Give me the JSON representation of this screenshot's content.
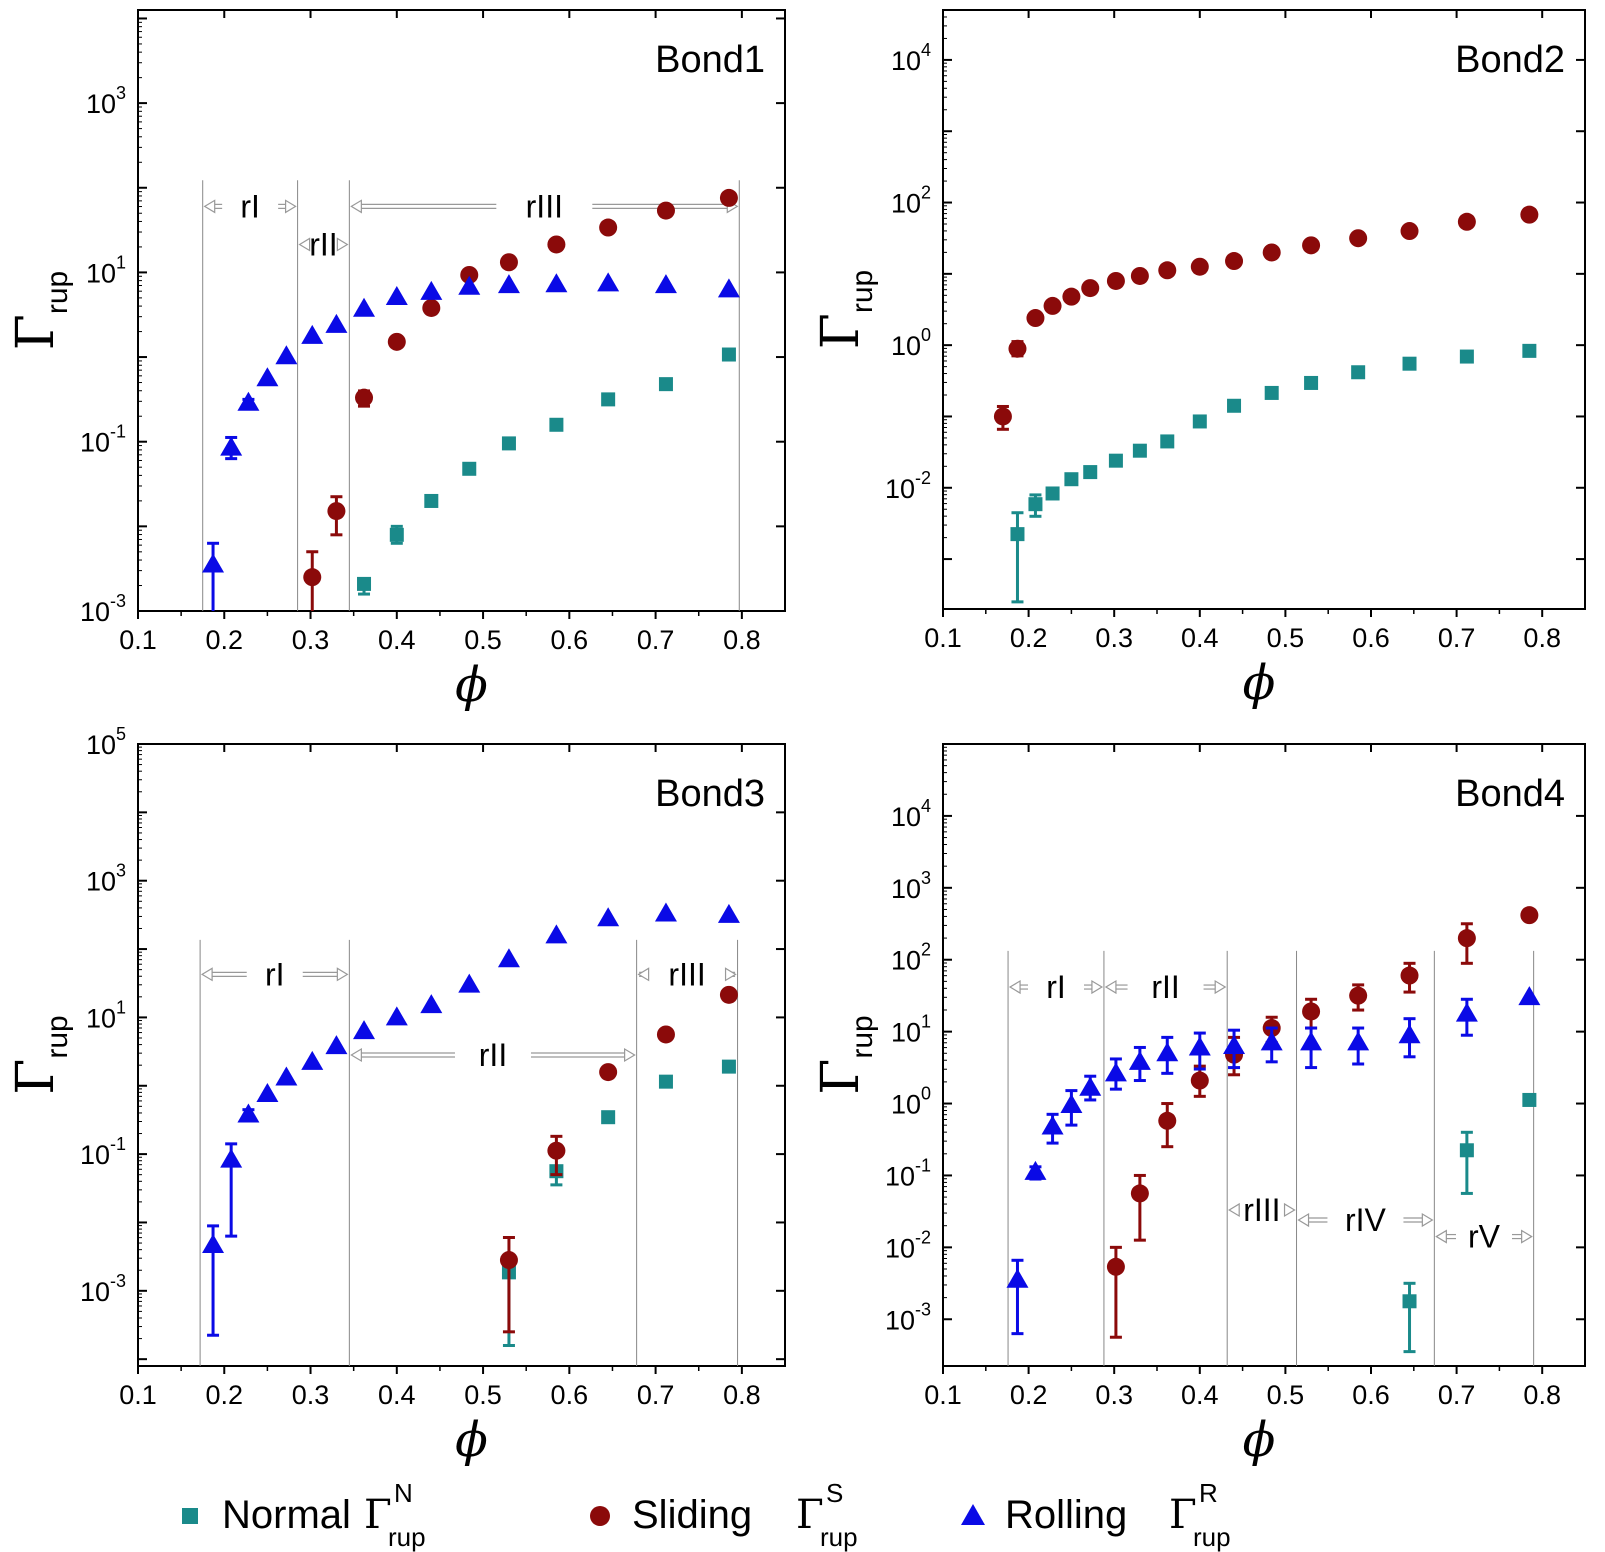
{
  "legend": {
    "normal": {
      "label": "Normal",
      "symbol": "Γ",
      "sup": "N",
      "sub": "rup",
      "color": "#1a8a8a",
      "marker": "square"
    },
    "sliding": {
      "label": "Sliding",
      "symbol": "Γ",
      "sup": "S",
      "sub": "rup",
      "color": "#8b0a0a",
      "marker": "circle"
    },
    "rolling": {
      "label": "Rolling",
      "symbol": "Γ",
      "sup": "R",
      "sub": "rup",
      "color": "#0a0ae6",
      "marker": "triangle"
    }
  },
  "axis_text": {
    "x_label": "ϕ",
    "y_symbol": "Γ",
    "y_sub": "rup"
  },
  "chart_data": [
    {
      "type": "scatter",
      "title": "Bond1",
      "xlabel": "ϕ",
      "ylabel": "Γrup",
      "yscale": "log",
      "xlim": [
        0.1,
        0.85
      ],
      "ylim_exp": [
        -3,
        4.1
      ],
      "xticks": [
        "0.1",
        "0.2",
        "0.3",
        "0.4",
        "0.5",
        "0.6",
        "0.7",
        "0.8"
      ],
      "yticks": [
        {
          "base": "10",
          "exp": "-3",
          "v": -3
        },
        {
          "base": "10",
          "exp": "-1",
          "v": -1
        },
        {
          "base": "10",
          "exp": "1",
          "v": 1
        },
        {
          "base": "10",
          "exp": "3",
          "v": 3
        }
      ],
      "region_lines": [
        0.175,
        0.285,
        0.345,
        0.797
      ],
      "regions": [
        {
          "label": "rI",
          "x1": 0.175,
          "x2": 0.285,
          "y_exp": 1.78,
          "arrow_style": "short"
        },
        {
          "label": "rII",
          "x1": 0.285,
          "x2": 0.345,
          "y_exp": 1.33,
          "arrow_style": "tiny"
        },
        {
          "label": "rIII",
          "x1": 0.345,
          "x2": 0.797,
          "y_exp": 1.78,
          "arrow_style": "long"
        }
      ],
      "series": [
        {
          "name": "Normal",
          "x": [
            0.362,
            0.4,
            0.44,
            0.484,
            0.53,
            0.585,
            0.645,
            0.712,
            0.785
          ],
          "y_exp": [
            -2.68,
            -2.1,
            -1.7,
            -1.32,
            -1.02,
            -0.8,
            -0.5,
            -0.32,
            0.03
          ],
          "err_lo": [
            -2.8,
            -2.2,
            null,
            null,
            null,
            null,
            null,
            null,
            null
          ],
          "err_hi": [
            null,
            -2.0,
            null,
            null,
            null,
            null,
            null,
            null,
            null
          ]
        },
        {
          "name": "Sliding",
          "x": [
            0.302,
            0.33,
            0.362,
            0.4,
            0.44,
            0.484,
            0.53,
            0.585,
            0.645,
            0.712,
            0.785
          ],
          "y_exp": [
            -2.6,
            -1.82,
            -0.48,
            0.18,
            0.58,
            0.97,
            1.12,
            1.33,
            1.53,
            1.73,
            1.88
          ],
          "err_lo": [
            -3.0,
            -2.1,
            -0.58,
            null,
            null,
            null,
            null,
            null,
            null,
            null,
            null
          ],
          "err_hi": [
            -2.3,
            -1.65,
            -0.4,
            null,
            null,
            null,
            null,
            null,
            null,
            null,
            null
          ]
        },
        {
          "name": "Rolling",
          "x": [
            0.187,
            0.208,
            0.228,
            0.25,
            0.272,
            0.302,
            0.33,
            0.362,
            0.4,
            0.44,
            0.484,
            0.53,
            0.585,
            0.645,
            0.712,
            0.785
          ],
          "y_exp": [
            -2.45,
            -1.07,
            -0.54,
            -0.25,
            0.01,
            0.25,
            0.38,
            0.57,
            0.71,
            0.77,
            0.83,
            0.85,
            0.86,
            0.87,
            0.85,
            0.8
          ],
          "err_lo": [
            -3.0,
            -1.2,
            -0.6,
            null,
            null,
            null,
            null,
            null,
            null,
            null,
            null,
            null,
            null,
            null,
            null,
            null
          ],
          "err_hi": [
            -2.2,
            -0.95,
            -0.5,
            null,
            null,
            null,
            null,
            null,
            null,
            null,
            null,
            null,
            null,
            null,
            null,
            null
          ]
        }
      ]
    },
    {
      "type": "scatter",
      "title": "Bond2",
      "xlabel": "ϕ",
      "ylabel": "Γrup",
      "yscale": "log",
      "xlim": [
        0.1,
        0.85
      ],
      "ylim_exp": [
        -3.7,
        4.7
      ],
      "xticks": [
        "0.1",
        "0.2",
        "0.3",
        "0.4",
        "0.5",
        "0.6",
        "0.7",
        "0.8"
      ],
      "yticks": [
        {
          "base": "10",
          "exp": "-2",
          "v": -2
        },
        {
          "base": "10",
          "exp": "0",
          "v": 0
        },
        {
          "base": "10",
          "exp": "2",
          "v": 2
        },
        {
          "base": "10",
          "exp": "4",
          "v": 4
        }
      ],
      "region_lines": [],
      "regions": [],
      "series": [
        {
          "name": "Normal",
          "x": [
            0.187,
            0.208,
            0.228,
            0.25,
            0.272,
            0.302,
            0.33,
            0.362,
            0.4,
            0.44,
            0.484,
            0.53,
            0.585,
            0.645,
            0.712,
            0.785
          ],
          "y_exp": [
            -2.65,
            -2.23,
            -2.08,
            -1.88,
            -1.78,
            -1.62,
            -1.48,
            -1.35,
            -1.07,
            -0.85,
            -0.67,
            -0.53,
            -0.38,
            -0.26,
            -0.16,
            -0.08
          ],
          "err_lo": [
            -3.6,
            -2.4,
            -2.12,
            null,
            null,
            null,
            null,
            null,
            null,
            null,
            null,
            null,
            null,
            null,
            null,
            null
          ],
          "err_hi": [
            -2.35,
            -2.1,
            -2.04,
            null,
            null,
            null,
            null,
            null,
            null,
            null,
            null,
            null,
            null,
            null,
            null,
            null
          ]
        },
        {
          "name": "Sliding",
          "x": [
            0.17,
            0.187,
            0.208,
            0.228,
            0.25,
            0.272,
            0.302,
            0.33,
            0.362,
            0.4,
            0.44,
            0.484,
            0.53,
            0.585,
            0.645,
            0.712,
            0.785
          ],
          "y_exp": [
            -1.0,
            -0.05,
            0.38,
            0.55,
            0.68,
            0.8,
            0.9,
            0.97,
            1.05,
            1.1,
            1.18,
            1.3,
            1.4,
            1.5,
            1.6,
            1.73,
            1.83
          ],
          "err_lo": [
            -1.18,
            -0.15,
            null,
            null,
            null,
            null,
            null,
            null,
            null,
            null,
            null,
            null,
            null,
            null,
            null,
            null,
            null
          ],
          "err_hi": [
            -0.86,
            0.05,
            null,
            null,
            null,
            null,
            null,
            null,
            null,
            null,
            null,
            null,
            null,
            null,
            null,
            null,
            null
          ]
        }
      ]
    },
    {
      "type": "scatter",
      "title": "Bond3",
      "xlabel": "ϕ",
      "ylabel": "Γrup",
      "yscale": "log",
      "xlim": [
        0.1,
        0.85
      ],
      "ylim_exp": [
        -4.1,
        5
      ],
      "xticks": [
        "0.1",
        "0.2",
        "0.3",
        "0.4",
        "0.5",
        "0.6",
        "0.7",
        "0.8"
      ],
      "yticks": [
        {
          "base": "10",
          "exp": "-3",
          "v": -3
        },
        {
          "base": "10",
          "exp": "-1",
          "v": -1
        },
        {
          "base": "10",
          "exp": "1",
          "v": 1
        },
        {
          "base": "10",
          "exp": "3",
          "v": 3
        },
        {
          "base": "10",
          "exp": "5",
          "v": 5
        }
      ],
      "region_lines": [
        0.172,
        0.345,
        0.678,
        0.795
      ],
      "regions": [
        {
          "label": "rI",
          "x1": 0.172,
          "x2": 0.345,
          "y_exp": 1.63,
          "arrow_style": "short"
        },
        {
          "label": "rII",
          "x1": 0.345,
          "x2": 0.678,
          "y_exp": 0.45,
          "arrow_style": "long"
        },
        {
          "label": "rIII",
          "x1": 0.678,
          "x2": 0.795,
          "y_exp": 1.63,
          "arrow_style": "short"
        }
      ],
      "series": [
        {
          "name": "Normal",
          "x": [
            0.53,
            0.585,
            0.645,
            0.712,
            0.785
          ],
          "y_exp": [
            -2.73,
            -1.25,
            -0.46,
            0.06,
            0.28
          ],
          "err_lo": [
            -3.8,
            -1.45,
            null,
            null,
            null
          ],
          "err_hi": null
        },
        {
          "name": "Sliding",
          "x": [
            0.53,
            0.585,
            0.645,
            0.712,
            0.785
          ],
          "y_exp": [
            -2.55,
            -0.95,
            0.2,
            0.75,
            1.33
          ],
          "err_lo": [
            -3.6,
            -1.3,
            null,
            null,
            null
          ],
          "err_hi": [
            -2.22,
            -0.74,
            null,
            null,
            null
          ]
        },
        {
          "name": "Rolling",
          "x": [
            0.187,
            0.208,
            0.228,
            0.25,
            0.272,
            0.302,
            0.33,
            0.362,
            0.4,
            0.44,
            0.484,
            0.53,
            0.585,
            0.645,
            0.712,
            0.785
          ],
          "y_exp": [
            -2.33,
            -1.08,
            -0.42,
            -0.12,
            0.12,
            0.35,
            0.58,
            0.8,
            1.0,
            1.18,
            1.48,
            1.85,
            2.2,
            2.45,
            2.52,
            2.5
          ],
          "err_lo": [
            -3.65,
            -2.2,
            -0.5,
            null,
            null,
            null,
            null,
            null,
            null,
            null,
            null,
            null,
            null,
            null,
            null,
            null
          ],
          "err_hi": [
            -2.05,
            -0.85,
            -0.35,
            null,
            null,
            null,
            null,
            null,
            null,
            null,
            null,
            null,
            null,
            null,
            null,
            null
          ]
        }
      ]
    },
    {
      "type": "scatter",
      "title": "Bond4",
      "xlabel": "ϕ",
      "ylabel": "Γrup",
      "yscale": "log",
      "xlim": [
        0.1,
        0.85
      ],
      "ylim_exp": [
        -3.65,
        5
      ],
      "xticks": [
        "0.1",
        "0.2",
        "0.3",
        "0.4",
        "0.5",
        "0.6",
        "0.7",
        "0.8"
      ],
      "yticks": [
        {
          "base": "10",
          "exp": "-3",
          "v": -3
        },
        {
          "base": "10",
          "exp": "-2",
          "v": -2
        },
        {
          "base": "10",
          "exp": "-1",
          "v": -1
        },
        {
          "base": "10",
          "exp": "0",
          "v": 0
        },
        {
          "base": "10",
          "exp": "1",
          "v": 1
        },
        {
          "base": "10",
          "exp": "2",
          "v": 2
        },
        {
          "base": "10",
          "exp": "3",
          "v": 3
        },
        {
          "base": "10",
          "exp": "4",
          "v": 4
        }
      ],
      "region_lines": [
        0.176,
        0.288,
        0.432,
        0.513,
        0.674,
        0.79
      ],
      "regions": [
        {
          "label": "rI",
          "x1": 0.176,
          "x2": 0.288,
          "y_exp": 1.62,
          "arrow_style": "short"
        },
        {
          "label": "rII",
          "x1": 0.288,
          "x2": 0.432,
          "y_exp": 1.62,
          "arrow_style": "short"
        },
        {
          "label": "rIII",
          "x1": 0.432,
          "x2": 0.513,
          "y_exp": -1.48,
          "arrow_style": "tiny"
        },
        {
          "label": "rIV",
          "x1": 0.513,
          "x2": 0.674,
          "y_exp": -1.62,
          "arrow_style": "short"
        },
        {
          "label": "rV",
          "x1": 0.674,
          "x2": 0.79,
          "y_exp": -1.85,
          "arrow_style": "short"
        }
      ],
      "series": [
        {
          "name": "Normal",
          "x": [
            0.645,
            0.712,
            0.785
          ],
          "y_exp": [
            -2.75,
            -0.65,
            0.05
          ],
          "err_lo": [
            -3.45,
            -1.25,
            null
          ],
          "err_hi": [
            -2.5,
            -0.4,
            null
          ]
        },
        {
          "name": "Sliding",
          "x": [
            0.302,
            0.33,
            0.362,
            0.4,
            0.44,
            0.484,
            0.53,
            0.585,
            0.645,
            0.712,
            0.785
          ],
          "y_exp": [
            -2.27,
            -1.25,
            -0.24,
            0.32,
            0.68,
            1.05,
            1.28,
            1.5,
            1.78,
            2.3,
            2.62
          ],
          "err_lo": [
            -3.25,
            -1.9,
            -0.6,
            0.1,
            0.4,
            0.85,
            1.05,
            1.3,
            1.55,
            1.95,
            null
          ],
          "err_hi": [
            -2.0,
            -1.0,
            0.0,
            0.52,
            0.92,
            1.2,
            1.45,
            1.65,
            1.95,
            2.5,
            null
          ]
        },
        {
          "name": "Rolling",
          "x": [
            0.187,
            0.208,
            0.228,
            0.25,
            0.272,
            0.302,
            0.33,
            0.362,
            0.4,
            0.44,
            0.484,
            0.53,
            0.585,
            0.645,
            0.712,
            0.785
          ],
          "y_exp": [
            -2.45,
            -0.95,
            -0.32,
            -0.02,
            0.22,
            0.42,
            0.58,
            0.7,
            0.78,
            0.8,
            0.85,
            0.85,
            0.85,
            0.95,
            1.25,
            1.48
          ],
          "err_lo": [
            -3.2,
            -1.05,
            -0.55,
            -0.3,
            0.05,
            0.2,
            0.32,
            0.42,
            0.48,
            0.5,
            0.58,
            0.5,
            0.55,
            0.65,
            0.95,
            null
          ],
          "err_hi": [
            -2.18,
            -0.88,
            -0.15,
            0.18,
            0.38,
            0.62,
            0.78,
            0.92,
            0.98,
            1.02,
            1.05,
            1.05,
            1.05,
            1.18,
            1.45,
            null
          ]
        }
      ]
    }
  ]
}
